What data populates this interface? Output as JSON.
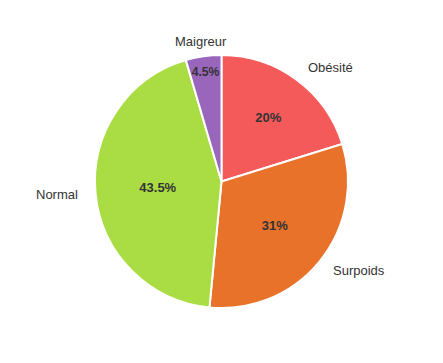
{
  "chart_data": {
    "type": "pie",
    "categories": [
      "Obésité",
      "Surpoids",
      "Normal",
      "Maigreur"
    ],
    "values": [
      20,
      31,
      43.5,
      4.5
    ],
    "value_labels": [
      "20%",
      "31%",
      "43.5%",
      "4.5%"
    ],
    "colors": [
      "#f55a5a",
      "#e8722a",
      "#aadd44",
      "#9966bb"
    ],
    "data_labels": true
  }
}
